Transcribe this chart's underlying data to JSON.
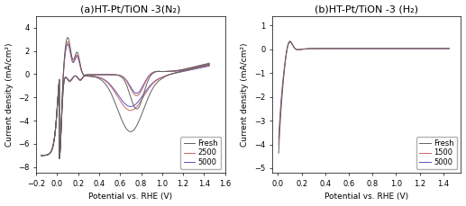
{
  "left_title": "(a)HT-Pt/TiON -3(N₂)",
  "right_title": "(b)HT-Pt/TiON -3 (H₂)",
  "xlabel": "Potential vs. RHE (V)",
  "ylabel": "Current density (mA/cm²)",
  "left_xlim": [
    -0.2,
    1.6
  ],
  "left_ylim": [
    -8.5,
    5.0
  ],
  "right_xlim": [
    -0.05,
    1.55
  ],
  "right_ylim": [
    -5.2,
    1.4
  ],
  "left_legend": [
    "Fresh",
    "2500",
    "5000"
  ],
  "right_legend": [
    "Fresh",
    "1500",
    "5000"
  ],
  "colors_fresh": "#606060",
  "colors_2500": "#cc6666",
  "colors_5000": "#5555bb",
  "left_xticks": [
    -0.2,
    0.0,
    0.2,
    0.4,
    0.6,
    0.8,
    1.0,
    1.2,
    1.4,
    1.6
  ],
  "left_yticks": [
    -8,
    -6,
    -4,
    -2,
    0,
    2,
    4
  ],
  "right_xticks": [
    0.0,
    0.2,
    0.4,
    0.6,
    0.8,
    1.0,
    1.2,
    1.4
  ],
  "right_yticks": [
    -5,
    -4,
    -3,
    -2,
    -1,
    0,
    1
  ],
  "title_fontsize": 8,
  "label_fontsize": 6.5,
  "tick_fontsize": 6,
  "legend_fontsize": 6
}
